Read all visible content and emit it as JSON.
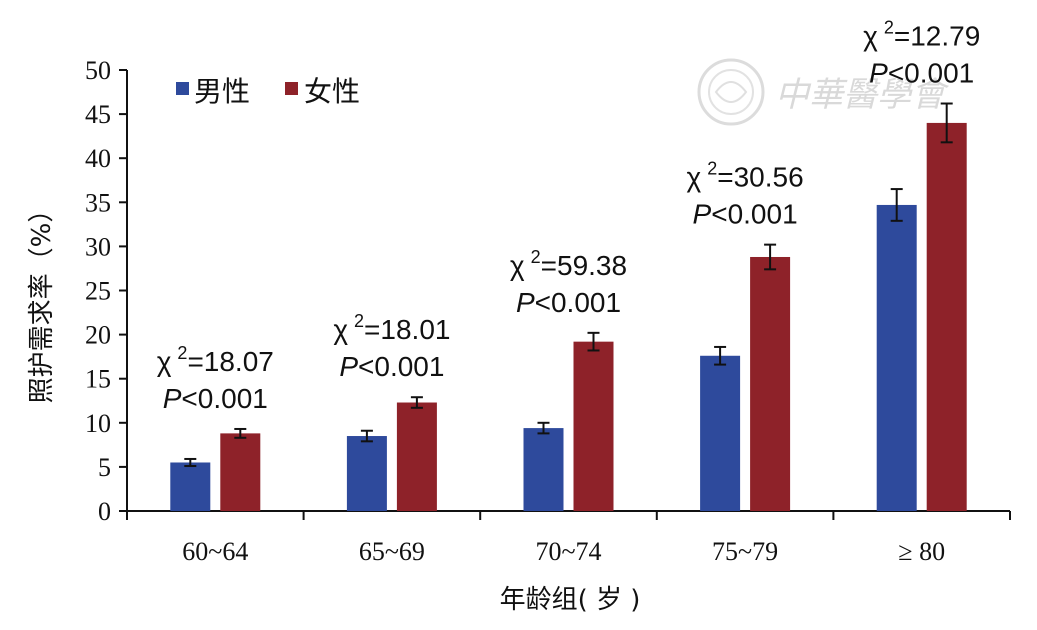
{
  "chart_data": {
    "type": "bar",
    "xlabel": "年龄组( 岁 )",
    "ylabel": "照护需求率（%）",
    "categories": [
      "60~64",
      "65~69",
      "70~74",
      "75~79",
      "≥ 80"
    ],
    "ylim": [
      0,
      50
    ],
    "yticks": [
      0,
      5,
      10,
      15,
      20,
      25,
      30,
      35,
      40,
      45,
      50
    ],
    "grid": false,
    "legend_position": "top-left",
    "series": [
      {
        "name": "男性",
        "color": "#2e4a9c",
        "values": [
          5.5,
          8.5,
          9.4,
          17.6,
          34.7
        ],
        "errors": [
          0.4,
          0.6,
          0.6,
          1.0,
          1.8
        ]
      },
      {
        "name": "女性",
        "color": "#8e2229",
        "values": [
          8.8,
          12.3,
          19.2,
          28.8,
          44.0
        ],
        "errors": [
          0.5,
          0.6,
          1.0,
          1.4,
          2.2
        ]
      }
    ],
    "annotations": [
      {
        "chi": "χ",
        "sup": "2",
        "stat": "=18.07",
        "p_letter": "P",
        "p_rest": "<0.001"
      },
      {
        "chi": "χ",
        "sup": "2",
        "stat": "=18.01",
        "p_letter": "P",
        "p_rest": "<0.001"
      },
      {
        "chi": "χ",
        "sup": "2",
        "stat": "=59.38",
        "p_letter": "P",
        "p_rest": "<0.001"
      },
      {
        "chi": "χ",
        "sup": "2",
        "stat": "=30.56",
        "p_letter": "P",
        "p_rest": "<0.001"
      },
      {
        "chi": "χ",
        "sup": "2",
        "stat": "=12.79",
        "p_letter": "P",
        "p_rest": "<0.001"
      }
    ]
  },
  "watermark": {
    "text": "中華醫學會",
    "icon": "society-seal-icon"
  }
}
